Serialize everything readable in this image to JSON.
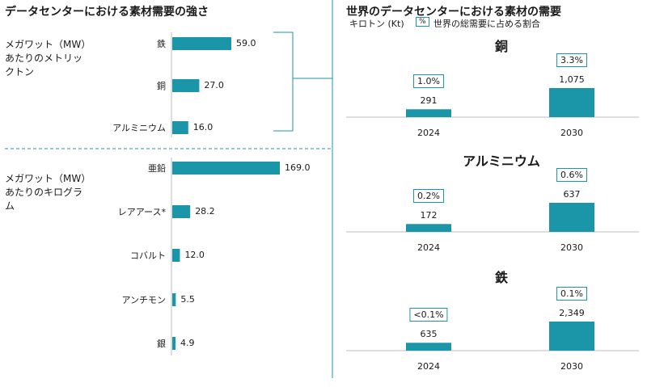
{
  "left": {
    "title": "データセンターにおける素材需要の強さ",
    "group1_label": "メガワット（MW）あたりのメトリックトン",
    "group2_label": "メガワット（MW）あたりのキログラム"
  },
  "right": {
    "title": "世界のデータセンターにおける素材の需要",
    "unit_label": "キロトン (Kt)",
    "legend_symbol": "%",
    "legend_text": "世界の総需要に占める割合"
  },
  "colors": {
    "bar": "#1b96a8",
    "bar_dark": "#0e7f91",
    "line": "#1b96a8"
  },
  "chart_data": [
    {
      "type": "bar",
      "orientation": "horizontal",
      "title": "データセンターにおける素材需要の強さ",
      "groups": [
        {
          "label": "メガワット（MW）あたりのメトリックトン",
          "categories": [
            "鉄",
            "銅",
            "アルミニウム"
          ],
          "values": [
            59.0,
            27.0,
            16.0
          ],
          "value_labels": [
            "59.0",
            "27.0",
            "16.0"
          ]
        },
        {
          "label": "メガワット（MW）あたりのキログラム",
          "categories": [
            "亜鉛",
            "レアアース*",
            "コバルト",
            "アンチモン",
            "銀"
          ],
          "values": [
            169.0,
            28.2,
            12.0,
            5.5,
            4.9
          ],
          "value_labels": [
            "169.0",
            "28.2",
            "12.0",
            "5.5",
            "4.9"
          ]
        }
      ]
    },
    {
      "type": "bar",
      "title": "世界のデータセンターにおける素材の需要",
      "ylabel": "キロトン (Kt)",
      "panels": [
        {
          "name": "銅",
          "categories": [
            "2024",
            "2030"
          ],
          "values": [
            291,
            1075
          ],
          "value_labels": [
            "291",
            "1,075"
          ],
          "shares": [
            "1.0%",
            "3.3%"
          ]
        },
        {
          "name": "アルミニウム",
          "categories": [
            "2024",
            "2030"
          ],
          "values": [
            172,
            637
          ],
          "value_labels": [
            "172",
            "637"
          ],
          "shares": [
            "0.2%",
            "0.6%"
          ]
        },
        {
          "name": "鉄",
          "categories": [
            "2024",
            "2030"
          ],
          "values": [
            635,
            2349
          ],
          "value_labels": [
            "635",
            "2,349"
          ],
          "shares": [
            "<0.1%",
            "0.1%"
          ]
        }
      ]
    }
  ]
}
